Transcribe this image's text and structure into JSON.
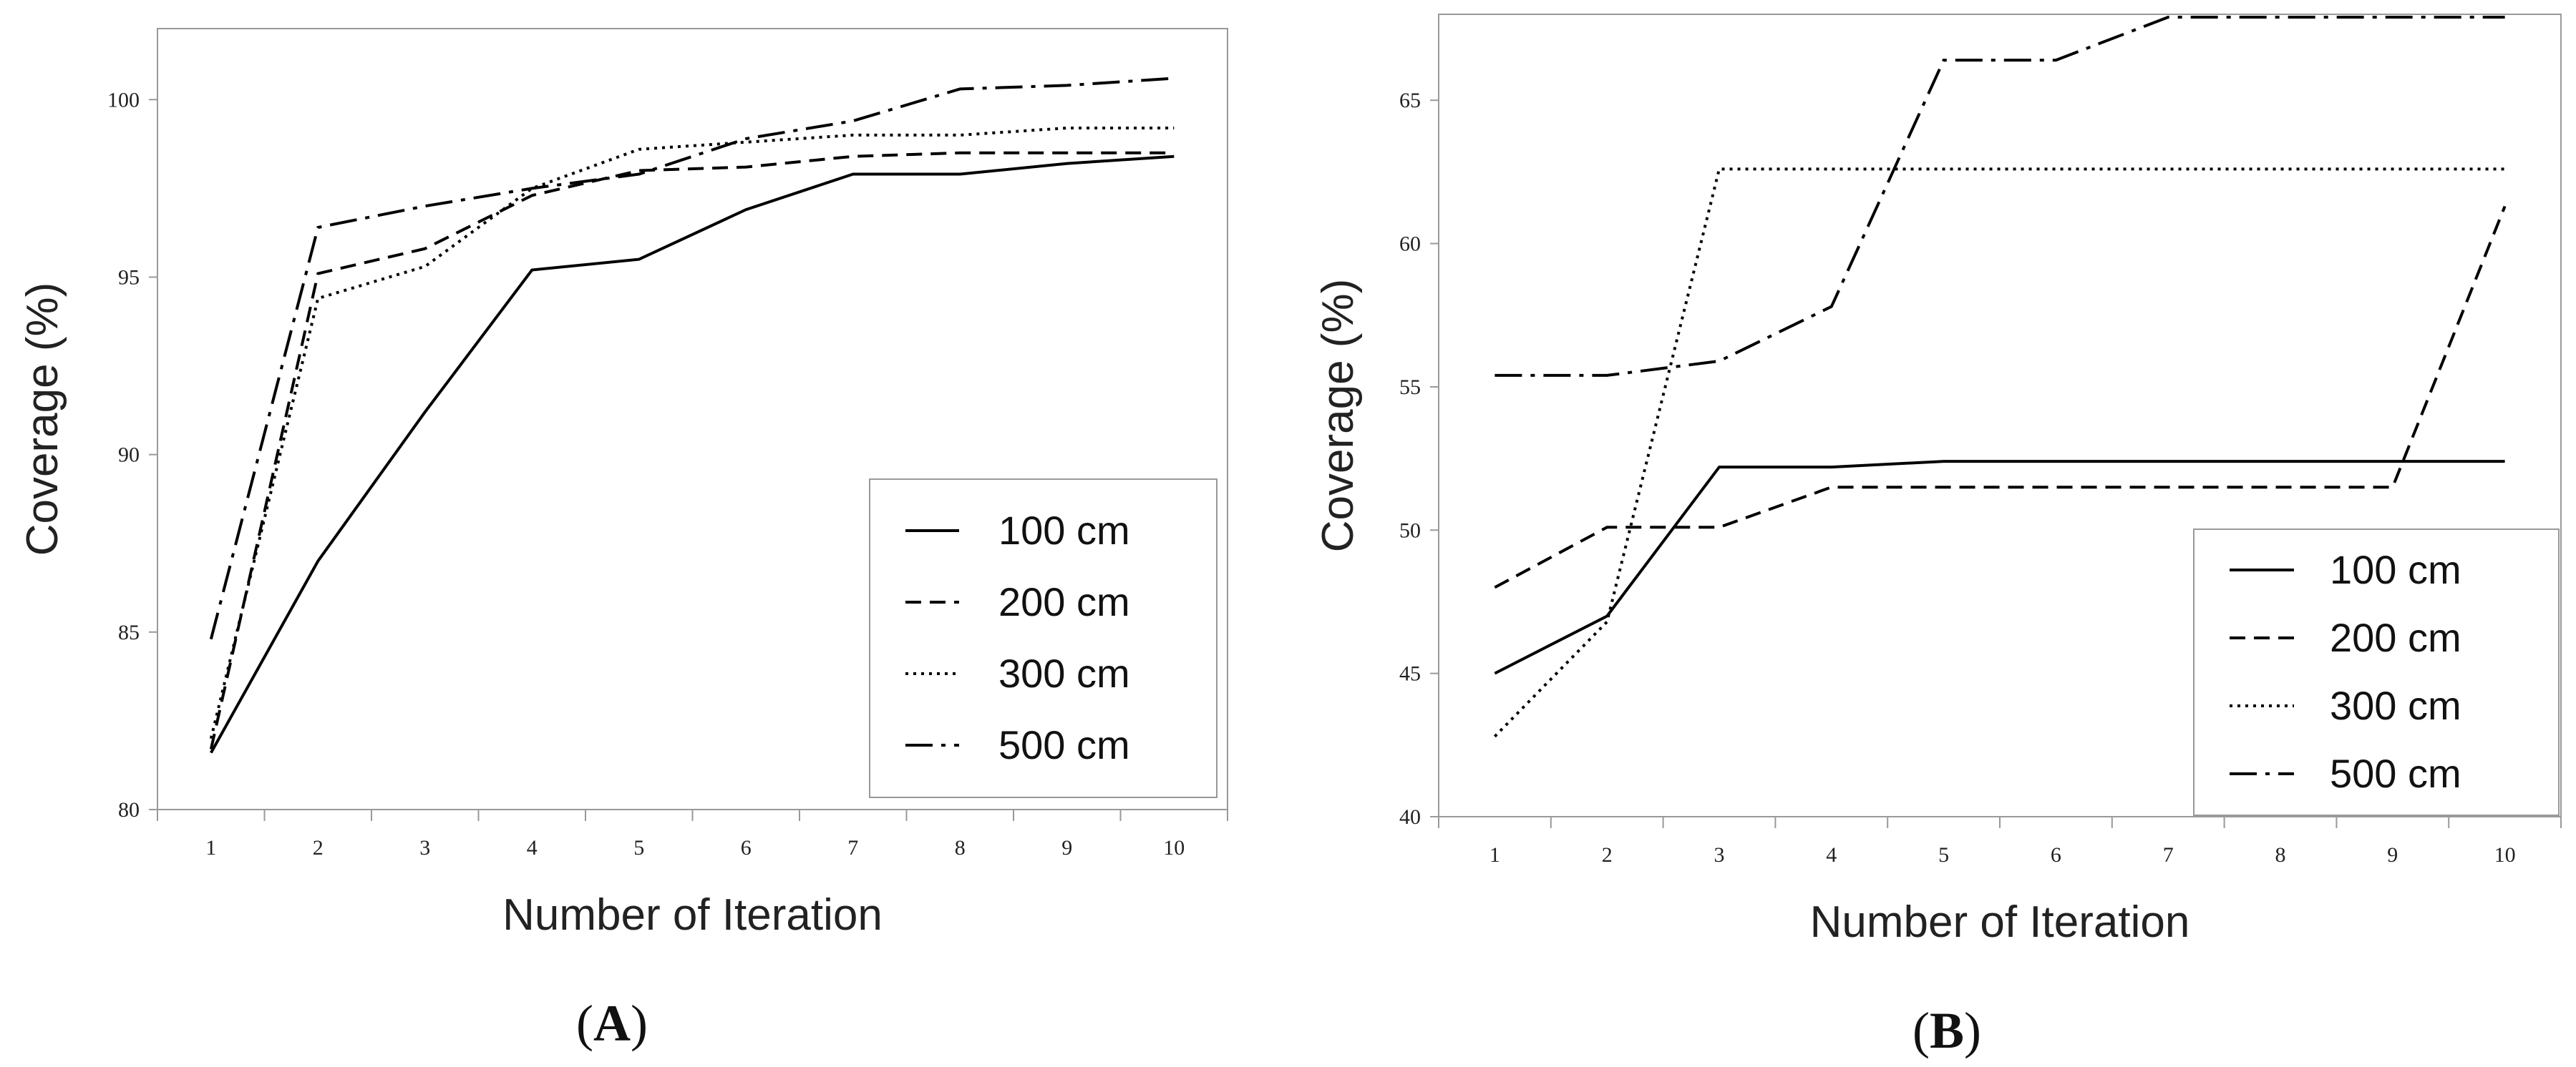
{
  "chart_data": [
    {
      "type": "line",
      "panel": "A",
      "panel_label_open": "(",
      "panel_label_letter": "A",
      "panel_label_close": ")",
      "xlabel": "Number of Iteration",
      "ylabel": "Coverage (%)",
      "x": [
        1,
        2,
        3,
        4,
        5,
        6,
        7,
        8,
        9,
        10
      ],
      "ylim": [
        80,
        102
      ],
      "yticks": [
        80,
        85,
        90,
        95,
        100
      ],
      "legend_position": "bottom-right",
      "series": [
        {
          "name": "100 cm",
          "style": "solid",
          "values": [
            81.6,
            87.0,
            91.2,
            95.2,
            95.5,
            96.9,
            97.9,
            97.9,
            98.2,
            98.4
          ]
        },
        {
          "name": "200 cm",
          "style": "dashed",
          "values": [
            81.7,
            95.1,
            95.8,
            97.3,
            98.0,
            98.1,
            98.4,
            98.5,
            98.5,
            98.5
          ]
        },
        {
          "name": "300 cm",
          "style": "dotted",
          "values": [
            82.0,
            94.4,
            95.3,
            97.5,
            98.6,
            98.8,
            99.0,
            99.0,
            99.2,
            99.2
          ]
        },
        {
          "name": "500 cm",
          "style": "dashdot",
          "values": [
            84.8,
            96.4,
            97.0,
            97.5,
            97.9,
            98.9,
            99.4,
            100.3,
            100.4,
            100.6
          ]
        }
      ]
    },
    {
      "type": "line",
      "panel": "B",
      "panel_label_open": "(",
      "panel_label_letter": "B",
      "panel_label_close": ")",
      "xlabel": "Number of Iteration",
      "ylabel": "Coverage (%)",
      "x": [
        1,
        2,
        3,
        4,
        5,
        6,
        7,
        8,
        9,
        10
      ],
      "ylim": [
        40,
        68
      ],
      "yticks": [
        40,
        45,
        50,
        55,
        60,
        65
      ],
      "legend_position": "bottom-right",
      "series": [
        {
          "name": "100 cm",
          "style": "solid",
          "values": [
            45.0,
            47.0,
            52.2,
            52.2,
            52.4,
            52.4,
            52.4,
            52.4,
            52.4,
            52.4
          ]
        },
        {
          "name": "200 cm",
          "style": "dashed",
          "values": [
            48.0,
            50.1,
            50.1,
            51.5,
            51.5,
            51.5,
            51.5,
            51.5,
            51.5,
            61.3
          ]
        },
        {
          "name": "300 cm",
          "style": "dotted",
          "values": [
            42.8,
            46.8,
            62.6,
            62.6,
            62.6,
            62.6,
            62.6,
            62.6,
            62.6,
            62.6
          ]
        },
        {
          "name": "500 cm",
          "style": "dashdot",
          "values": [
            55.4,
            55.4,
            55.9,
            57.8,
            66.4,
            66.4,
            67.9,
            67.9,
            67.9,
            67.9
          ]
        }
      ]
    }
  ]
}
